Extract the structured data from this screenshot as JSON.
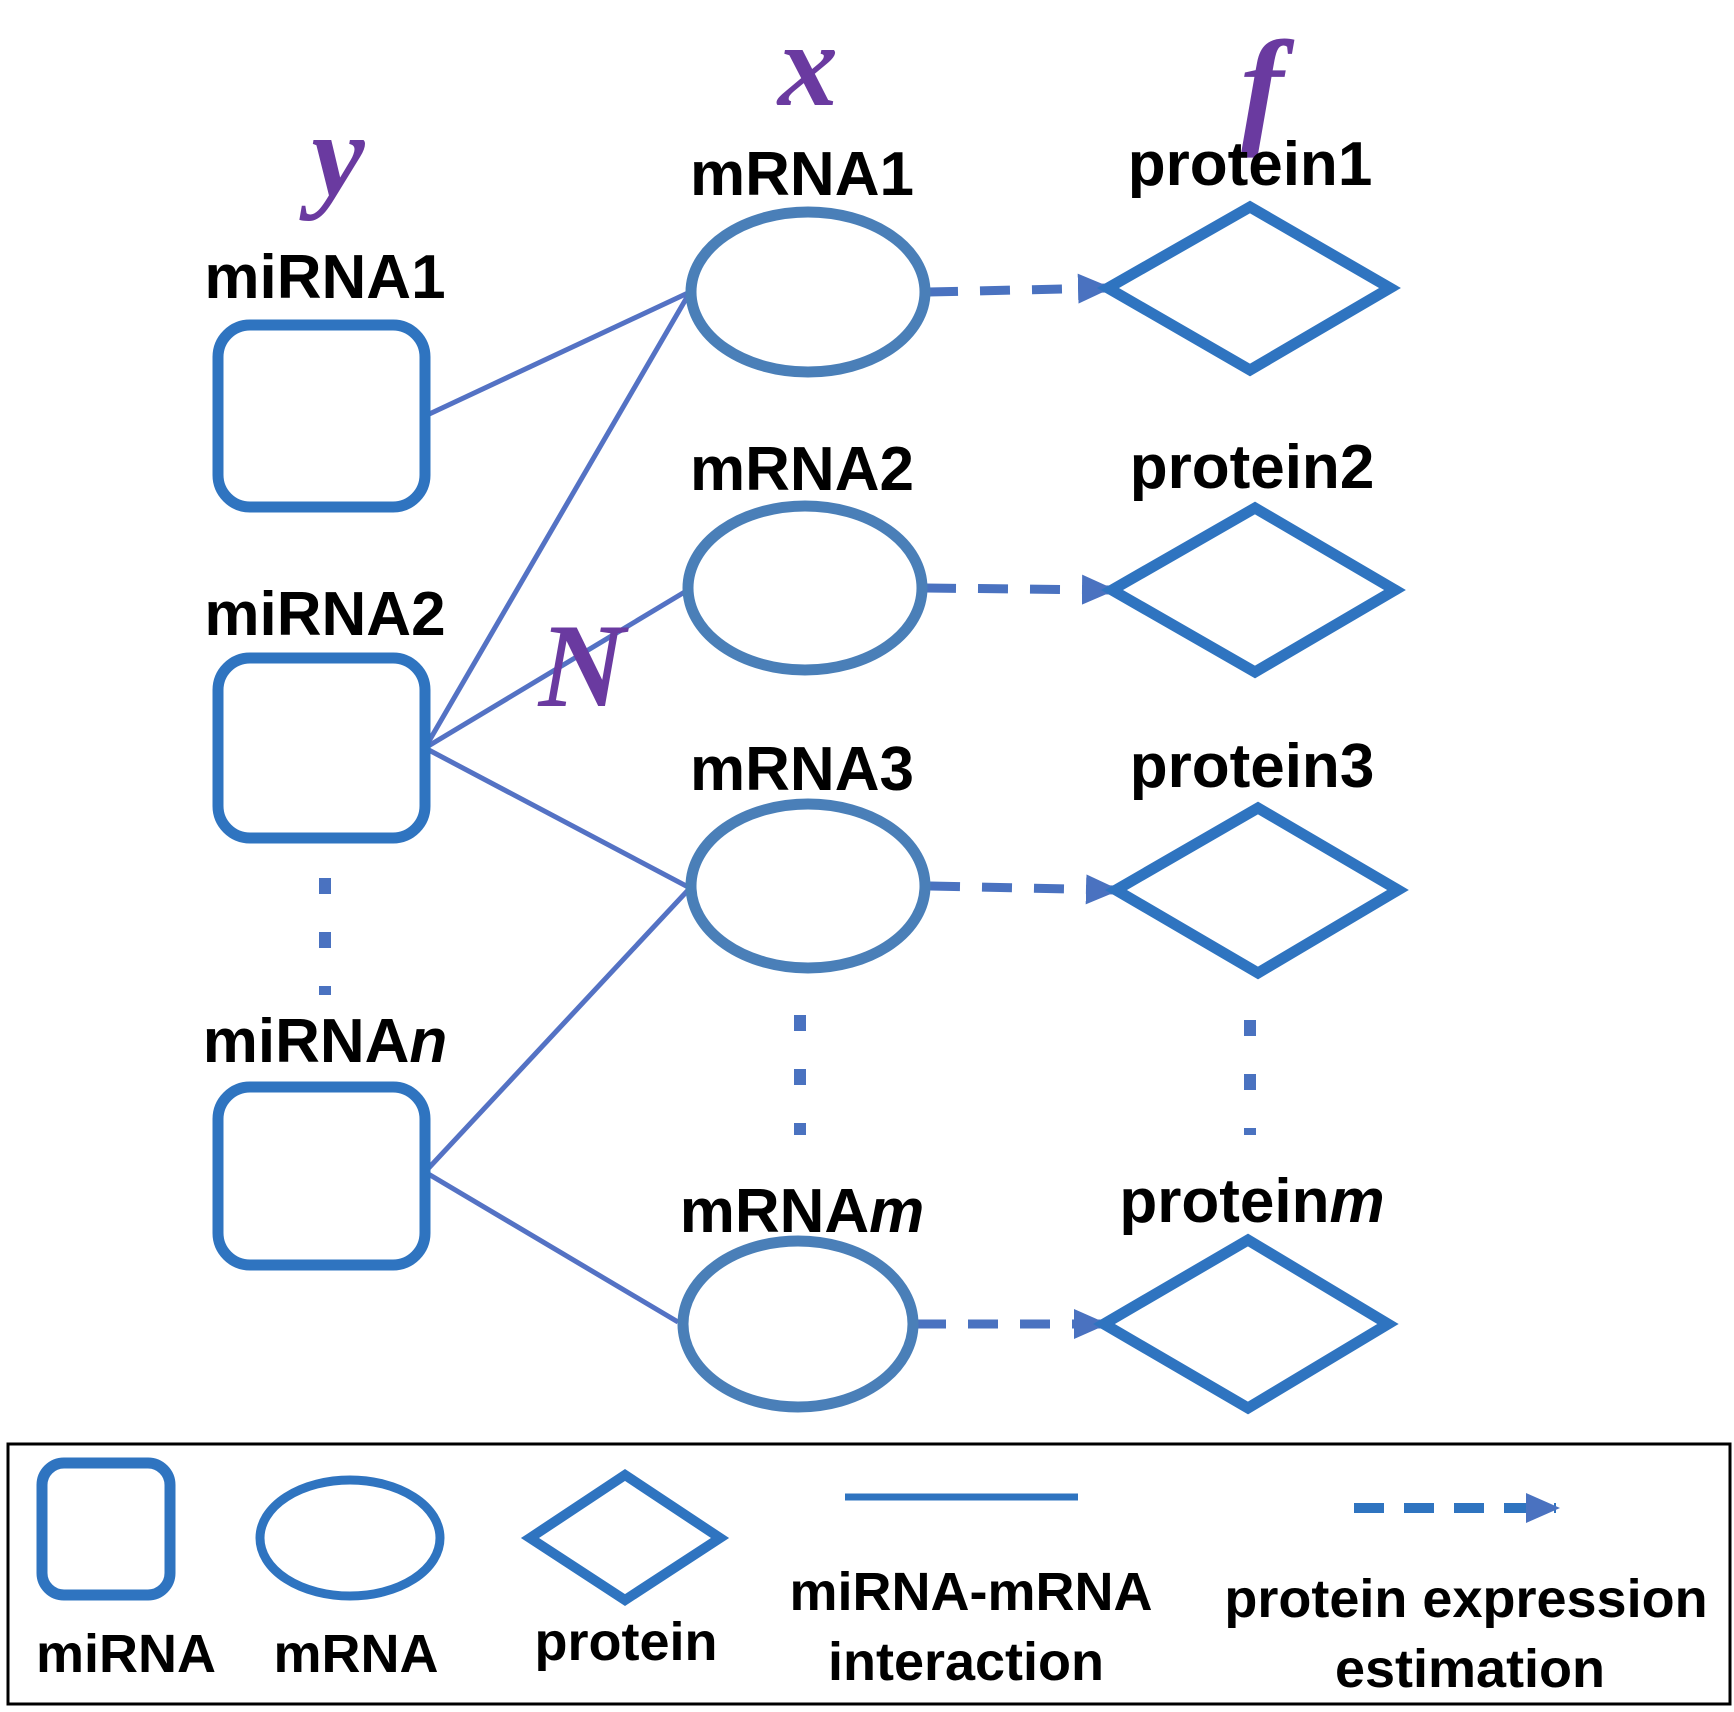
{
  "symbols": {
    "y": "y",
    "x": "x",
    "f": "f",
    "N": "N"
  },
  "mirna": [
    {
      "label": "miRNA",
      "suffix": "1",
      "suffix_italic": false
    },
    {
      "label": "miRNA",
      "suffix": "2",
      "suffix_italic": false
    },
    {
      "label": "miRNA",
      "suffix": "n",
      "suffix_italic": true
    }
  ],
  "mrna": [
    {
      "label": "mRNA",
      "suffix": "1",
      "suffix_italic": false
    },
    {
      "label": "mRNA",
      "suffix": "2",
      "suffix_italic": false
    },
    {
      "label": "mRNA",
      "suffix": "3",
      "suffix_italic": false
    },
    {
      "label": "mRNA",
      "suffix": "m",
      "suffix_italic": true
    }
  ],
  "protein": [
    {
      "label": "protein",
      "suffix": "1",
      "suffix_italic": false
    },
    {
      "label": "protein",
      "suffix": "2",
      "suffix_italic": false
    },
    {
      "label": "protein",
      "suffix": "3",
      "suffix_italic": false
    },
    {
      "label": "protein",
      "suffix": "m",
      "suffix_italic": true
    }
  ],
  "interactions": [
    {
      "from": "miRNA1",
      "to": "mRNA1"
    },
    {
      "from": "miRNA2",
      "to": "mRNA1"
    },
    {
      "from": "miRNA2",
      "to": "mRNA2"
    },
    {
      "from": "miRNA2",
      "to": "mRNA3"
    },
    {
      "from": "miRNAn",
      "to": "mRNA3"
    },
    {
      "from": "miRNAn",
      "to": "mRNAm"
    }
  ],
  "estimations": [
    {
      "from": "mRNA1",
      "to": "protein1"
    },
    {
      "from": "mRNA2",
      "to": "protein2"
    },
    {
      "from": "mRNA3",
      "to": "protein3"
    },
    {
      "from": "mRNAm",
      "to": "proteinm"
    }
  ],
  "legend": {
    "mirna": "miRNA",
    "mrna": "mRNA",
    "protein": "protein",
    "interaction_line1": "miRNA-mRNA",
    "interaction_line2": "interaction",
    "estimation_line1": "protein expression",
    "estimation_line2": "estimation"
  },
  "colors": {
    "node_stroke": "#2f74c0",
    "mrna_stroke": "#4a7fb8",
    "edge": "#5472c4",
    "symbol": "#6a3aa0"
  }
}
